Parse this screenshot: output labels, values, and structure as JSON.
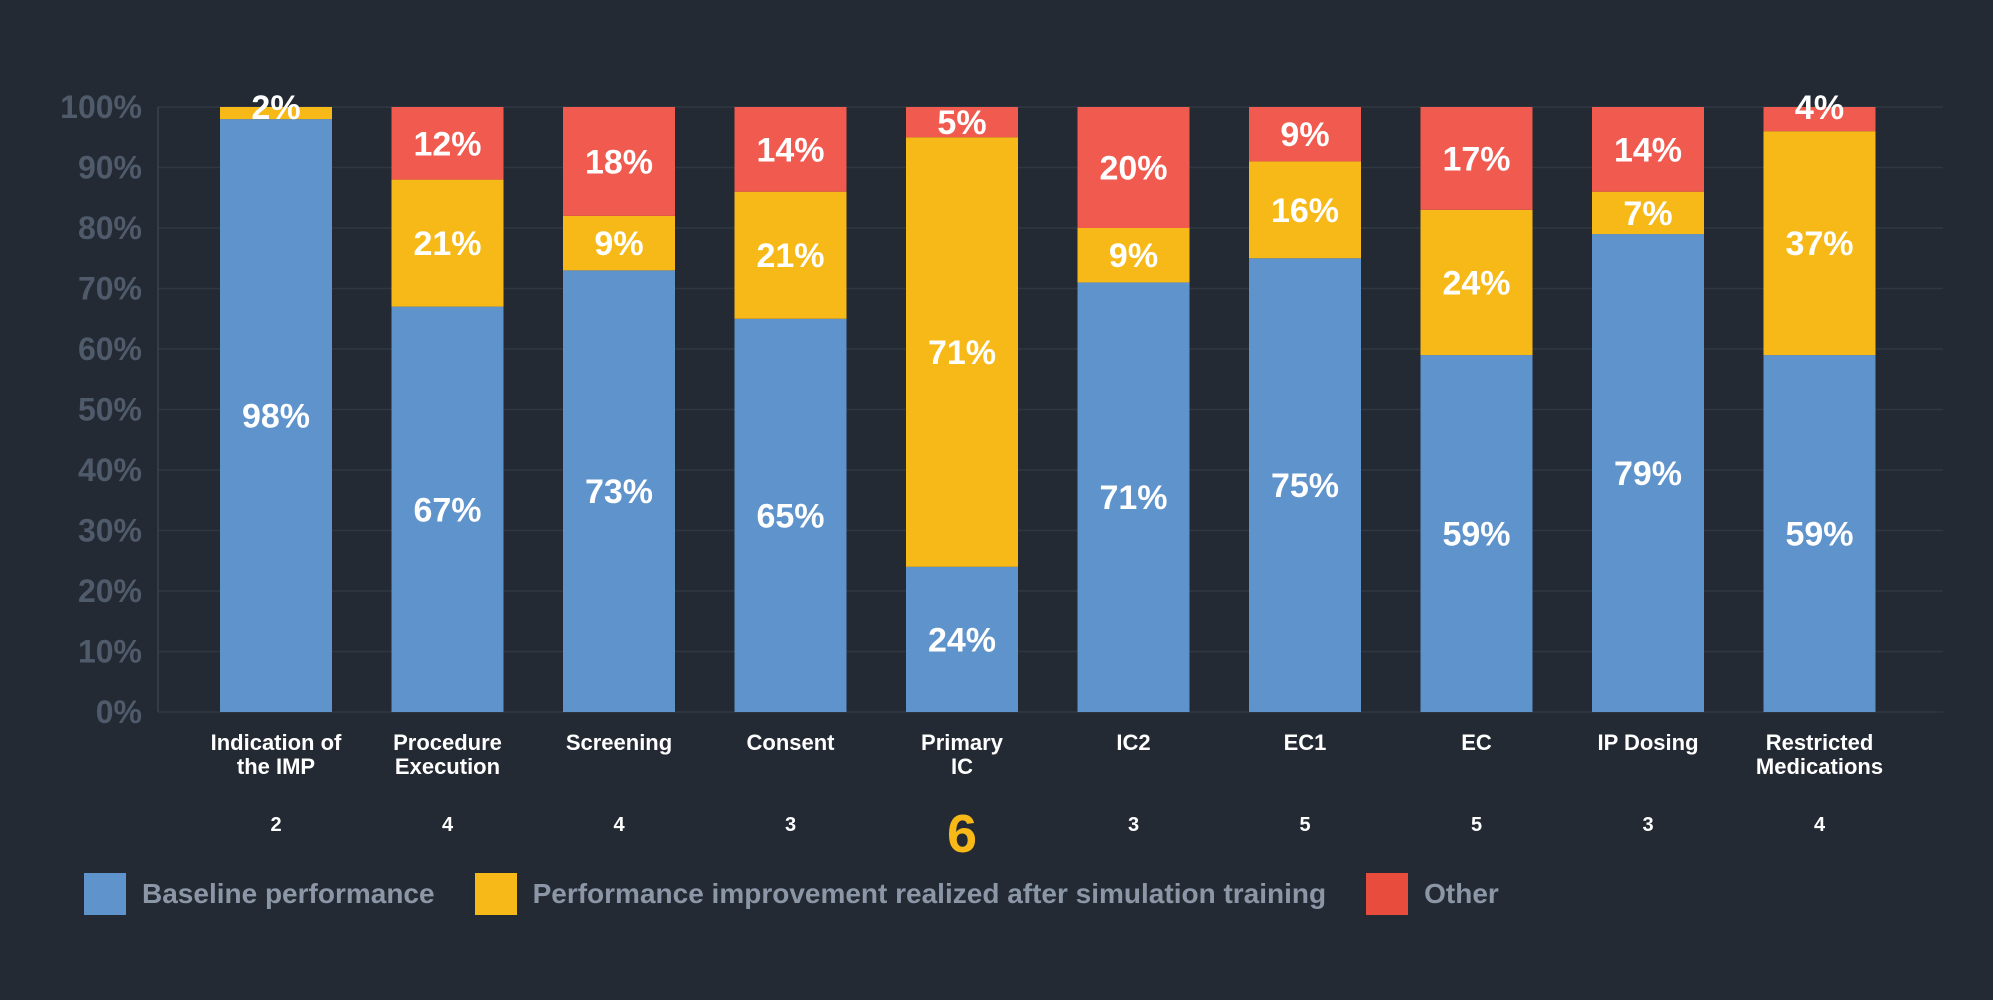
{
  "chart_data": {
    "type": "bar",
    "stacked": true,
    "ylim": [
      0,
      100
    ],
    "yticks": [
      "0%",
      "10%",
      "20%",
      "30%",
      "40%",
      "50%",
      "60%",
      "70%",
      "80%",
      "90%",
      "100%"
    ],
    "categories": [
      [
        "Indication of",
        "the IMP"
      ],
      [
        "Procedure",
        "Execution"
      ],
      [
        "Screening"
      ],
      [
        "Consent"
      ],
      [
        "Primary",
        "IC"
      ],
      [
        "IC2"
      ],
      [
        "EC1"
      ],
      [
        "EC"
      ],
      [
        "IP Dosing"
      ],
      [
        "Restricted",
        "Medications"
      ]
    ],
    "counts": [
      "2",
      "4",
      "4",
      "3",
      "6",
      "3",
      "5",
      "5",
      "3",
      "4"
    ],
    "highlighted_count_index": 4,
    "series": [
      {
        "name": "Baseline performance",
        "color": "#5f93cb",
        "values": [
          98,
          67,
          73,
          65,
          24,
          71,
          75,
          59,
          79,
          59
        ],
        "labels": [
          "98%",
          "67%",
          "73%",
          "65%",
          "24%",
          "71%",
          "75%",
          "59%",
          "79%",
          "59%"
        ]
      },
      {
        "name": "Performance improvement realized after simulation training",
        "color": "#f7b918",
        "values": [
          2,
          21,
          9,
          21,
          71,
          9,
          16,
          24,
          7,
          37
        ],
        "labels": [
          "2%",
          "21%",
          "9%",
          "21%",
          "71%",
          "9%",
          "16%",
          "24%",
          "7%",
          "37%"
        ]
      },
      {
        "name": "Other",
        "color": "#f05a4f",
        "values": [
          0,
          12,
          18,
          14,
          5,
          20,
          9,
          17,
          14,
          4
        ],
        "labels": [
          "",
          "12%",
          "18%",
          "14%",
          "5%",
          "20%",
          "9%",
          "17%",
          "14%",
          "4%"
        ]
      }
    ],
    "legend_position": "bottom-left",
    "grid": true
  },
  "colors": {
    "background": "#242a33",
    "gridline": "#2f3743",
    "tick_text": "#4f5a6b",
    "legend_text": "#8b96a6",
    "highlight": "#f7b918"
  }
}
